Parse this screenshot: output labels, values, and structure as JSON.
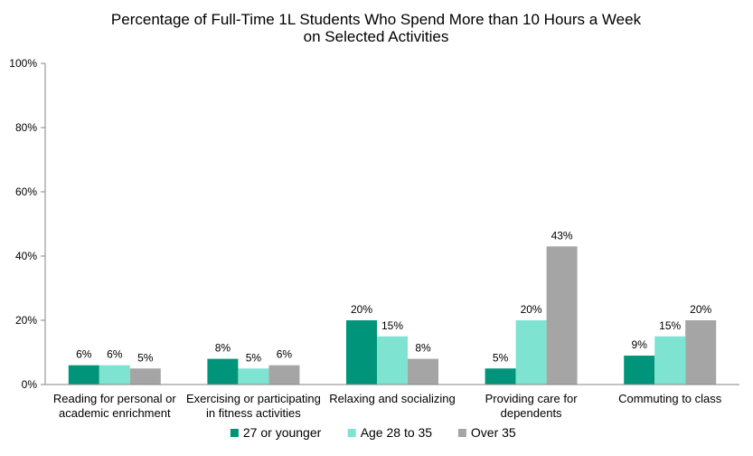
{
  "chart_data": {
    "type": "bar",
    "title_lines": [
      "Percentage of Full-Time 1L Students Who Spend More than  10 Hours a Week",
      "on Selected Activities"
    ],
    "categories": [
      [
        "Reading for personal or",
        "academic enrichment"
      ],
      [
        "Exercising or participating",
        "in fitness activities"
      ],
      [
        "Relaxing and socializing"
      ],
      [
        "Providing care for",
        "dependents"
      ],
      [
        "Commuting to class"
      ]
    ],
    "series": [
      {
        "name": "27 or younger",
        "color": "#00957a",
        "values": [
          6,
          8,
          20,
          5,
          9
        ],
        "labels": [
          "6%",
          "8%",
          "20%",
          "5%",
          "9%"
        ]
      },
      {
        "name": "Age 28 to 35",
        "color": "#7fe3d2",
        "values": [
          6,
          5,
          15,
          20,
          15
        ],
        "labels": [
          "6%",
          "5%",
          "15%",
          "20%",
          "15%"
        ]
      },
      {
        "name": "Over 35",
        "color": "#a5a5a5",
        "values": [
          5,
          6,
          8,
          43,
          20
        ],
        "labels": [
          "5%",
          "6%",
          "8%",
          "43%",
          "20%"
        ]
      }
    ],
    "ylim": [
      0,
      100
    ],
    "yticks": [
      {
        "value": 0,
        "label": "0%"
      },
      {
        "value": 20,
        "label": "20%"
      },
      {
        "value": 40,
        "label": "40%"
      },
      {
        "value": 60,
        "label": "60%"
      },
      {
        "value": 80,
        "label": "80%"
      },
      {
        "value": 100,
        "label": "100%"
      }
    ],
    "grid": false,
    "legend_position": "bottom"
  }
}
